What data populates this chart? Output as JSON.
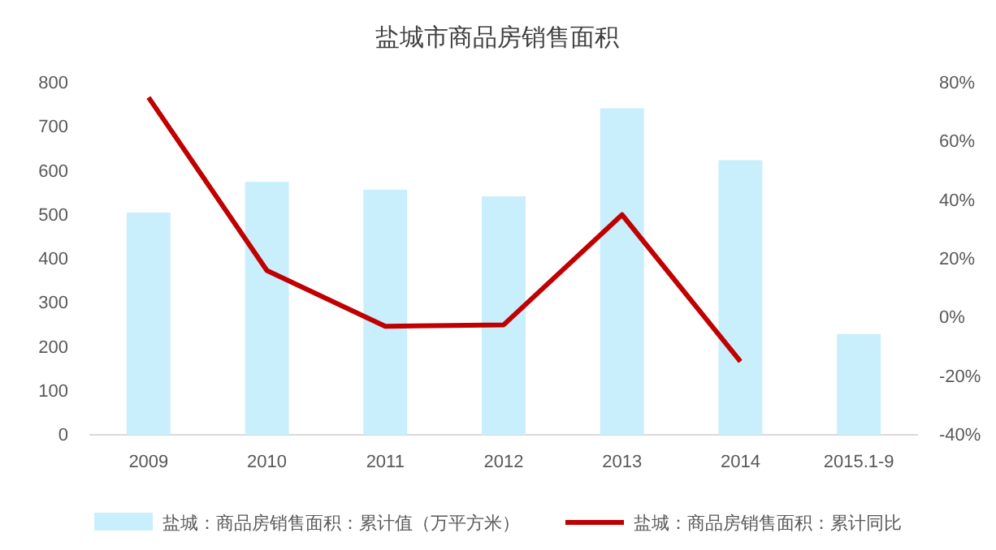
{
  "chart_data": {
    "type": "bar",
    "title": "盐城市商品房销售面积",
    "categories": [
      "2009",
      "2010",
      "2011",
      "2012",
      "2013",
      "2014",
      "2015.1-9"
    ],
    "series": [
      {
        "name": "盐城：商品房销售面积：累计值（万平方米）",
        "color": "#c9eefc",
        "values": [
          505,
          575,
          557,
          542,
          742,
          624,
          229
        ]
      },
      {
        "name": "盐城：商品房销售面积：累计同比",
        "type": "line",
        "axis": "y2",
        "color": "#c00000",
        "values": [
          75,
          16,
          -3,
          -2.5,
          35,
          -15,
          null
        ]
      }
    ],
    "ylim": [
      0,
      800
    ],
    "yticks": [
      0,
      100,
      200,
      300,
      400,
      500,
      600,
      700,
      800
    ],
    "y2lim": [
      -40,
      80
    ],
    "y2ticks": [
      {
        "value": -40,
        "label": "-40%"
      },
      {
        "value": -20,
        "label": "-20%"
      },
      {
        "value": 0,
        "label": "0%"
      },
      {
        "value": 20,
        "label": "20%"
      },
      {
        "value": 40,
        "label": "40%"
      },
      {
        "value": 60,
        "label": "60%"
      },
      {
        "value": 80,
        "label": "80%"
      }
    ],
    "legend": "bottom",
    "marker": "none",
    "line_style": "solid",
    "grid": false
  }
}
